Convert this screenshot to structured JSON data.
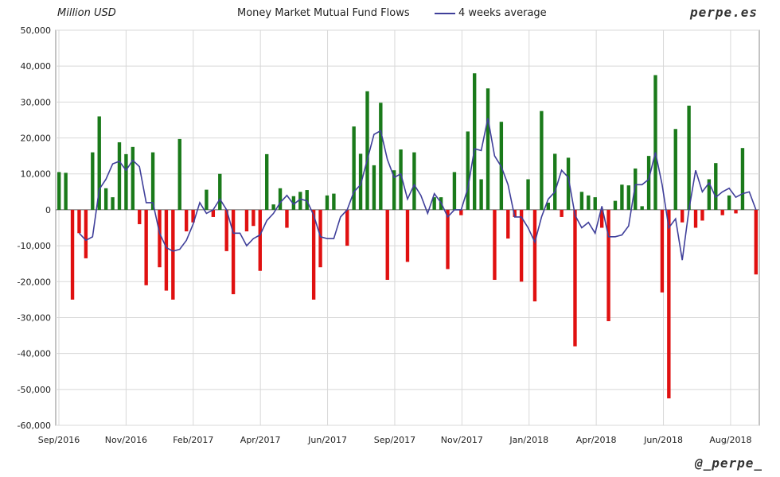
{
  "header": {
    "unit_label": "Million USD",
    "title": "Money Market Mutual Fund Flows",
    "legend_label": "4 weeks average",
    "brand": "perpe.es",
    "handle": "@_perpe_"
  },
  "colors": {
    "positive_bar": "#1a7a1a",
    "negative_bar": "#e01010",
    "average_line": "#3f3f9a",
    "grid": "#d8d8d8"
  },
  "chart_data": {
    "type": "bar",
    "title": "Money Market Mutual Fund Flows",
    "ylabel": "Million USD",
    "ylim": [
      -60000,
      50000
    ],
    "ytick_values": [
      50000,
      40000,
      30000,
      20000,
      10000,
      0,
      -10000,
      -20000,
      -30000,
      -40000,
      -50000,
      -60000
    ],
    "ytick_labels": [
      "50,000",
      "40,000",
      "30,000",
      "20,000",
      "10,000",
      "0",
      "-10,000",
      "-20,000",
      "-30,000",
      "-40,000",
      "-50,000",
      "-60,000"
    ],
    "xtick_labels": [
      "Sep/2016",
      "Nov/2016",
      "Feb/2017",
      "Apr/2017",
      "Jun/2017",
      "Sep/2017",
      "Nov/2017",
      "Jan/2018",
      "Apr/2018",
      "Jun/2018",
      "Aug/2018"
    ],
    "grid": true,
    "legend_position": "top-center",
    "series": [
      {
        "name": "",
        "kind": "bar",
        "values": [
          10500,
          10300,
          -25000,
          -6500,
          -13500,
          16000,
          26000,
          6000,
          3500,
          18800,
          15500,
          17500,
          -4000,
          -21000,
          16000,
          -16000,
          -22500,
          -25000,
          19700,
          -6000,
          -3500,
          0,
          5600,
          -2000,
          10000,
          -11500,
          -23500,
          0,
          -6000,
          -4500,
          -17000,
          15500,
          1500,
          6000,
          -5000,
          3800,
          5000,
          5500,
          -25000,
          -16000,
          4000,
          4500,
          0,
          -10000,
          23200,
          15600,
          33000,
          12400,
          29800,
          -19500,
          11000,
          16800,
          -14500,
          16000,
          0,
          0,
          3500,
          3500,
          -16500,
          10500,
          -1500,
          21800,
          38000,
          8500,
          33800,
          -19500,
          24500,
          -8000,
          -2000,
          -20000,
          8500,
          -25500,
          27500,
          2000,
          15600,
          -2000,
          14500,
          -38000,
          5000,
          4000,
          3500,
          -5000,
          -31000,
          2500,
          7000,
          6800,
          11500,
          1000,
          15000,
          37500,
          -23000,
          -52500,
          22500,
          -3500,
          29000,
          -5000,
          -3000,
          8500,
          13000,
          -1500,
          4000,
          -1000,
          17200,
          0,
          -18000
        ]
      },
      {
        "name": "4 weeks average",
        "kind": "line",
        "values": [
          null,
          null,
          null,
          -6500,
          -8500,
          -7500,
          5700,
          8500,
          12800,
          13500,
          11000,
          13800,
          12000,
          2000,
          2000,
          -6500,
          -10500,
          -11500,
          -11000,
          -8500,
          -4000,
          2000,
          -1000,
          0,
          3000,
          0,
          -6500,
          -6500,
          -10000,
          -8000,
          -7000,
          -3000,
          -1000,
          2000,
          4000,
          1500,
          3000,
          2500,
          -1500,
          -7500,
          -8000,
          -8000,
          -2000,
          0,
          5000,
          7000,
          14000,
          21000,
          22000,
          14000,
          9000,
          10000,
          3000,
          7000,
          4000,
          -1000,
          4500,
          2000,
          -2000,
          0,
          0,
          6000,
          17000,
          16500,
          25500,
          15000,
          12000,
          7000,
          -2000,
          -2000,
          -5000,
          -9000,
          -2000,
          3000,
          5000,
          11000,
          9000,
          -1500,
          -5000,
          -3500,
          -6500,
          1000,
          -7500,
          -7500,
          -7000,
          -4500,
          7000,
          7000,
          8500,
          16000,
          7000,
          -5000,
          -2500,
          -14000,
          0,
          11000,
          5000,
          7500,
          3500,
          5000,
          6000,
          3500,
          4500,
          5000,
          0
        ]
      }
    ]
  }
}
